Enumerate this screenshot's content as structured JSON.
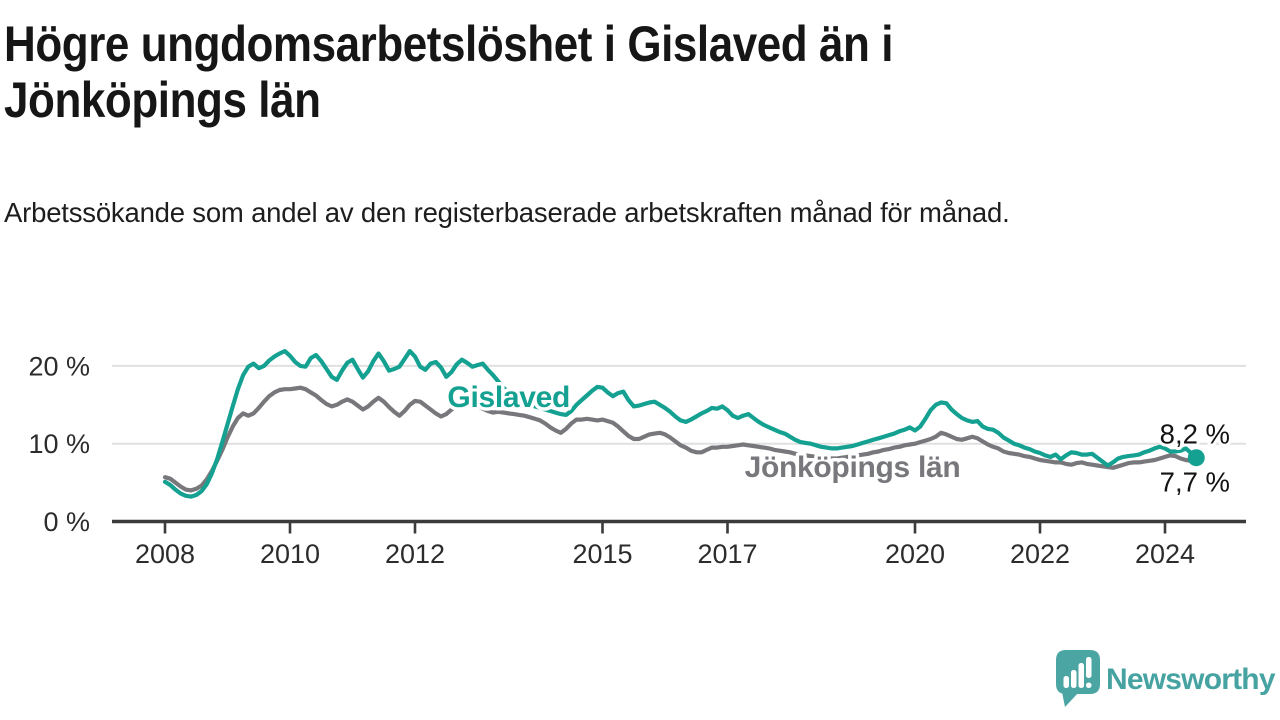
{
  "header": {
    "title": "Högre ungdomsarbetslöshet i Gislaved än i Jönköpings län",
    "subtitle": "Arbetssökande som andel av den registerbaserade arbetskraften månad för månad."
  },
  "footer": {
    "brand": "Newsworthy"
  },
  "colors": {
    "gislaved_line": "#14a191",
    "jonkoping_line": "#78787c",
    "axis": "#3b3b3b",
    "grid": "#e0e0e0",
    "tick_text": "#2c2c2c",
    "end_label_text": "#131313",
    "title_text": "#161616",
    "brand_teal": "#4ba6a3",
    "background": "#ffffff"
  },
  "chart_data": {
    "type": "line",
    "title": "Högre ungdomsarbetslöshet i Gislaved än i Jönköpings län",
    "subtitle": "Arbetssökande som andel av den registerbaserade arbetskraften månad för månad.",
    "unit": "%",
    "x_start_year": 2008,
    "x_resolution": "monthly",
    "x_end": "2024-07",
    "xlim": [
      2007.15,
      2025.3
    ],
    "ylim": [
      0,
      24
    ],
    "grid": "horizontal",
    "legend_position": "inline-labels",
    "x_ticks": [
      {
        "value": 2008,
        "label": "2008"
      },
      {
        "value": 2010,
        "label": "2010"
      },
      {
        "value": 2012,
        "label": "2012"
      },
      {
        "value": 2015,
        "label": "2015"
      },
      {
        "value": 2017,
        "label": "2017"
      },
      {
        "value": 2020,
        "label": "2020"
      },
      {
        "value": 2022,
        "label": "2022"
      },
      {
        "value": 2024,
        "label": "2024"
      }
    ],
    "y_ticks": [
      {
        "value": 0,
        "label": "0 %"
      },
      {
        "value": 10,
        "label": "10 %"
      },
      {
        "value": 20,
        "label": "20 %"
      }
    ],
    "series": [
      {
        "name": "Gislaved",
        "color": "#14a191",
        "end_label": "8,2 %",
        "end_value": 8.2,
        "end_dot": true,
        "label_pos": {
          "year": 2013.5,
          "pct": 14.7
        },
        "values": [
          5.1,
          4.7,
          4.1,
          3.6,
          3.3,
          3.2,
          3.4,
          3.9,
          4.8,
          6.2,
          8.0,
          10.2,
          12.5,
          14.8,
          17.0,
          18.8,
          19.9,
          20.3,
          19.7,
          20.0,
          20.7,
          21.2,
          21.6,
          21.9,
          21.3,
          20.5,
          20.0,
          19.9,
          21.0,
          21.4,
          20.6,
          19.6,
          18.6,
          18.2,
          19.4,
          20.4,
          20.8,
          19.6,
          18.5,
          19.3,
          20.6,
          21.6,
          20.6,
          19.4,
          19.6,
          19.9,
          20.9,
          21.9,
          21.2,
          19.9,
          19.5,
          20.3,
          20.5,
          19.8,
          18.6,
          19.2,
          20.2,
          20.8,
          20.4,
          19.9,
          20.1,
          20.3,
          19.5,
          18.8,
          18.0,
          17.2,
          16.5,
          16.0,
          15.6,
          15.3,
          15.0,
          14.8,
          14.6,
          14.4,
          14.2,
          14.0,
          13.8,
          13.7,
          14.2,
          15.0,
          15.6,
          16.2,
          16.8,
          17.3,
          17.2,
          16.6,
          16.1,
          16.5,
          16.7,
          15.6,
          14.8,
          14.9,
          15.1,
          15.3,
          15.4,
          15.0,
          14.6,
          14.1,
          13.5,
          13.0,
          12.8,
          13.1,
          13.5,
          13.9,
          14.2,
          14.6,
          14.5,
          14.8,
          14.3,
          13.6,
          13.3,
          13.6,
          13.8,
          13.3,
          12.8,
          12.4,
          12.1,
          11.8,
          11.5,
          11.3,
          10.9,
          10.5,
          10.2,
          10.1,
          10.0,
          9.8,
          9.6,
          9.5,
          9.4,
          9.4,
          9.5,
          9.6,
          9.7,
          9.9,
          10.1,
          10.3,
          10.5,
          10.7,
          10.9,
          11.1,
          11.3,
          11.6,
          11.8,
          12.1,
          11.7,
          12.2,
          13.2,
          14.3,
          15.0,
          15.3,
          15.2,
          14.4,
          13.8,
          13.3,
          13.0,
          12.8,
          12.9,
          12.2,
          11.9,
          11.8,
          11.4,
          10.8,
          10.4,
          10.0,
          9.8,
          9.5,
          9.3,
          9.0,
          8.8,
          8.5,
          8.3,
          8.6,
          8.0,
          8.5,
          8.9,
          8.8,
          8.6,
          8.6,
          8.7,
          8.2,
          7.7,
          7.2,
          7.6,
          8.1,
          8.3,
          8.4,
          8.5,
          8.6,
          8.9,
          9.1,
          9.4,
          9.6,
          9.4,
          9.0,
          9.0,
          9.1,
          9.4,
          8.8,
          8.2
        ]
      },
      {
        "name": "Jönköpings län",
        "color": "#78787c",
        "end_label": "7,7 %",
        "end_value": 7.7,
        "end_dot": false,
        "label_pos": {
          "year": 2019.0,
          "pct": 5.7
        },
        "values": [
          5.7,
          5.5,
          5.0,
          4.5,
          4.1,
          4.0,
          4.2,
          4.6,
          5.4,
          6.5,
          7.8,
          9.2,
          10.8,
          12.2,
          13.3,
          13.9,
          13.6,
          13.9,
          14.6,
          15.4,
          16.1,
          16.6,
          16.9,
          17.0,
          17.0,
          17.1,
          17.2,
          17.0,
          16.6,
          16.2,
          15.6,
          15.1,
          14.8,
          15.0,
          15.4,
          15.7,
          15.4,
          14.9,
          14.4,
          14.8,
          15.4,
          15.9,
          15.4,
          14.7,
          14.1,
          13.6,
          14.2,
          15.0,
          15.5,
          15.4,
          14.9,
          14.4,
          13.9,
          13.5,
          13.8,
          14.4,
          14.8,
          15.0,
          14.9,
          15.2,
          14.9,
          14.5,
          14.2,
          14.0,
          14.1,
          14.0,
          13.9,
          13.8,
          13.7,
          13.6,
          13.4,
          13.2,
          13.0,
          12.6,
          12.1,
          11.7,
          11.4,
          11.9,
          12.6,
          13.1,
          13.1,
          13.2,
          13.1,
          13.0,
          13.1,
          12.9,
          12.7,
          12.2,
          11.6,
          11.0,
          10.6,
          10.6,
          10.9,
          11.2,
          11.3,
          11.4,
          11.2,
          10.8,
          10.3,
          9.8,
          9.5,
          9.1,
          8.9,
          8.9,
          9.2,
          9.5,
          9.5,
          9.6,
          9.6,
          9.7,
          9.8,
          9.9,
          9.8,
          9.7,
          9.6,
          9.5,
          9.4,
          9.2,
          9.1,
          9.0,
          8.9,
          8.7,
          8.6,
          8.5,
          8.4,
          8.3,
          8.2,
          8.2,
          8.1,
          8.1,
          8.2,
          8.3,
          8.4,
          8.5,
          8.6,
          8.7,
          8.9,
          9.0,
          9.2,
          9.3,
          9.5,
          9.6,
          9.8,
          9.9,
          10.0,
          10.2,
          10.4,
          10.6,
          10.9,
          11.4,
          11.2,
          10.9,
          10.6,
          10.5,
          10.7,
          10.9,
          10.7,
          10.3,
          9.9,
          9.6,
          9.4,
          9.0,
          8.8,
          8.7,
          8.6,
          8.4,
          8.3,
          8.1,
          7.9,
          7.8,
          7.7,
          7.6,
          7.6,
          7.4,
          7.3,
          7.5,
          7.6,
          7.4,
          7.3,
          7.2,
          7.1,
          7.0,
          6.9,
          7.1,
          7.3,
          7.5,
          7.6,
          7.6,
          7.7,
          7.8,
          7.9,
          8.1,
          8.3,
          8.5,
          8.4,
          8.1,
          7.9,
          7.8,
          7.7
        ]
      }
    ]
  }
}
